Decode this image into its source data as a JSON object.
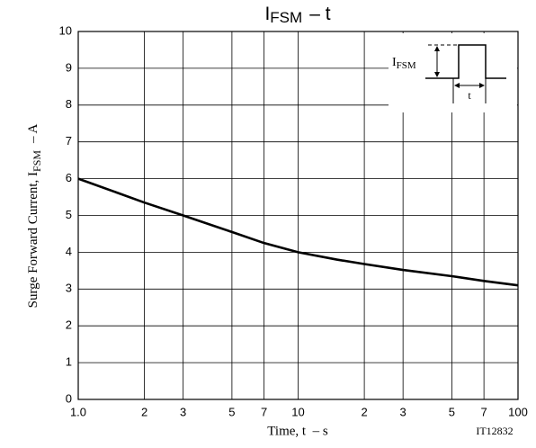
{
  "chart_data": {
    "type": "line",
    "title": {
      "main": "I",
      "sub": "FSM",
      "rest": "– t"
    },
    "y_label": {
      "main": "Surge Forward Current, I",
      "sub": "FSM",
      "rest": "– A"
    },
    "x_label": "Time, t  – s",
    "annotation": "IT12832",
    "inset": {
      "current_main": "I",
      "current_sub": "FSM",
      "time": "t"
    },
    "x": [
      1,
      1.5,
      2,
      3,
      5,
      7,
      10,
      15,
      20,
      30,
      50,
      70,
      100
    ],
    "values": [
      6.0,
      5.62,
      5.35,
      5.0,
      4.55,
      4.25,
      4.0,
      3.8,
      3.68,
      3.52,
      3.35,
      3.22,
      3.1
    ],
    "color": "#000000",
    "xscale": "log",
    "xlim": [
      1,
      100
    ],
    "xticks": [
      {
        "value": 1,
        "label": "1.0"
      },
      2,
      3,
      5,
      7,
      10,
      {
        "value": 20,
        "label": "2"
      },
      {
        "value": 30,
        "label": "3"
      },
      {
        "value": 50,
        "label": "5"
      },
      {
        "value": 70,
        "label": "7"
      },
      100
    ],
    "ylim": [
      0,
      10
    ],
    "yticks": [
      0,
      1,
      2,
      3,
      4,
      5,
      6,
      7,
      8,
      9,
      10
    ],
    "grid": true
  }
}
